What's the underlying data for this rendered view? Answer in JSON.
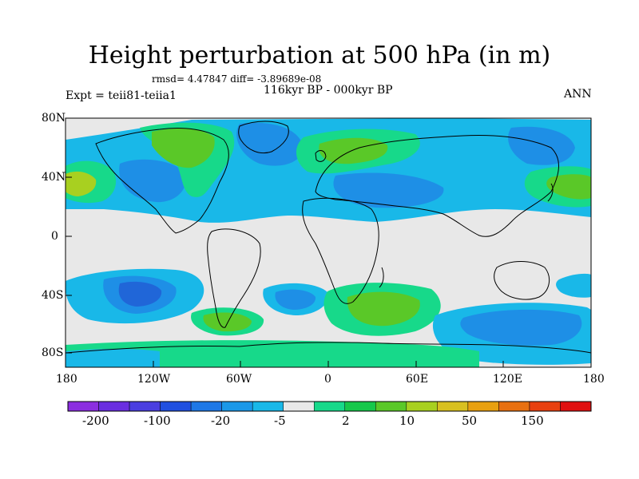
{
  "title": "Height perturbation at 500 hPa (in m)",
  "stats": "rmsd= 4.47847 diff= -3.89689e-08",
  "period": "116kyr BP - 000kyr BP",
  "experiment": "Expt = teii81-teiia1",
  "season": "ANN",
  "lat_labels": [
    "80N",
    "40N",
    "0",
    "40S",
    "80S"
  ],
  "lon_labels": [
    "180",
    "120W",
    "60W",
    "0",
    "60E",
    "120E",
    "180"
  ],
  "colorbar": {
    "labels": [
      "-200",
      "-100",
      "-20",
      "-5",
      "2",
      "10",
      "50",
      "150"
    ],
    "colors": [
      "#8b2ee0",
      "#6a2ee0",
      "#4a3ee0",
      "#2050e0",
      "#1e78e6",
      "#1b98e8",
      "#19b8e8",
      "#e8e8e8",
      "#17d98a",
      "#16c84a",
      "#5ac828",
      "#a8d020",
      "#d8c020",
      "#e8a010",
      "#e87010",
      "#e84010",
      "#e01010"
    ]
  },
  "map_colors": {
    "background": "#e8e8e8",
    "light_blue": "#19b8e8",
    "mid_blue": "#1e8fe6",
    "dark_blue": "#2066d8",
    "teal_green": "#17d98a",
    "green": "#5ac828",
    "yellow_green": "#a8d020",
    "coastline": "#000000"
  }
}
